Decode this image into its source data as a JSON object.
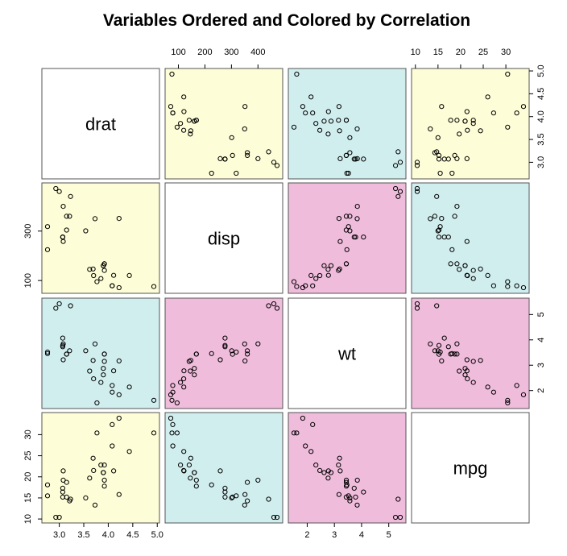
{
  "chart_data": {
    "type": "scatter",
    "subtype": "scatterplot-matrix",
    "title": "Variables Ordered and Colored by Correlation",
    "variables": [
      "drat",
      "disp",
      "wt",
      "mpg"
    ],
    "colors": {
      "high": "#f0bcdc",
      "mid": "#d1eeef",
      "low": "#fdfdd7",
      "diagonal": "#ffffff"
    },
    "panel_colors": [
      [
        "diagonal",
        "low",
        "mid",
        "low"
      ],
      [
        "low",
        "diagonal",
        "high",
        "mid"
      ],
      [
        "mid",
        "high",
        "diagonal",
        "high"
      ],
      [
        "low",
        "mid",
        "high",
        "diagonal"
      ]
    ],
    "axes": {
      "drat": {
        "range": [
          2.76,
          4.93
        ],
        "ticks": [
          3.0,
          3.5,
          4.0,
          4.5,
          5.0
        ],
        "tick_labels": [
          "3.0",
          "3.5",
          "4.0",
          "4.5",
          "5.0"
        ]
      },
      "disp": {
        "range": [
          71.1,
          472.0
        ],
        "ticks": [
          100,
          200,
          300,
          400
        ],
        "tick_labels": [
          "100",
          "200",
          "300",
          "400"
        ],
        "left_ticks": [
          100,
          300
        ],
        "left_tick_labels": [
          "100",
          "300"
        ]
      },
      "wt": {
        "range": [
          1.513,
          5.424
        ],
        "ticks": [
          2,
          3,
          4,
          5
        ],
        "tick_labels": [
          "2",
          "3",
          "4",
          "5"
        ]
      },
      "mpg": {
        "range": [
          10.4,
          33.9
        ],
        "ticks": [
          10,
          15,
          20,
          25,
          30
        ],
        "tick_labels": [
          "10",
          "15",
          "20",
          "25",
          "30"
        ]
      }
    },
    "data": {
      "drat": [
        3.9,
        3.9,
        3.85,
        3.08,
        3.15,
        2.76,
        3.21,
        3.69,
        3.92,
        3.92,
        3.92,
        3.07,
        3.07,
        3.07,
        2.93,
        3.0,
        3.23,
        4.08,
        4.93,
        4.22,
        3.7,
        2.76,
        3.15,
        3.73,
        3.08,
        4.08,
        4.43,
        3.77,
        4.22,
        3.62,
        3.54,
        4.11
      ],
      "disp": [
        160,
        160,
        108,
        258,
        360,
        225,
        360,
        146.7,
        140.8,
        167.6,
        167.6,
        275.8,
        275.8,
        275.8,
        472,
        460,
        440,
        78.7,
        75.7,
        71.1,
        120.1,
        318,
        304,
        350,
        400,
        79,
        120.3,
        95.1,
        351,
        145,
        301,
        121
      ],
      "wt": [
        2.62,
        2.875,
        2.32,
        3.215,
        3.44,
        3.46,
        3.57,
        3.19,
        3.15,
        3.44,
        3.44,
        4.07,
        3.73,
        3.78,
        5.25,
        5.424,
        5.345,
        2.2,
        1.615,
        1.835,
        2.465,
        3.52,
        3.435,
        3.84,
        3.845,
        1.935,
        2.14,
        1.513,
        3.17,
        2.77,
        3.57,
        2.78
      ],
      "mpg": [
        21.0,
        21.0,
        22.8,
        21.4,
        18.7,
        18.1,
        14.3,
        24.4,
        22.8,
        19.2,
        17.8,
        16.4,
        17.3,
        15.2,
        10.4,
        10.4,
        14.7,
        32.4,
        30.4,
        33.9,
        21.5,
        15.5,
        15.2,
        13.3,
        19.2,
        27.3,
        26.0,
        30.4,
        15.8,
        19.7,
        15.0,
        21.4
      ]
    },
    "grid": false,
    "legend": "none"
  }
}
